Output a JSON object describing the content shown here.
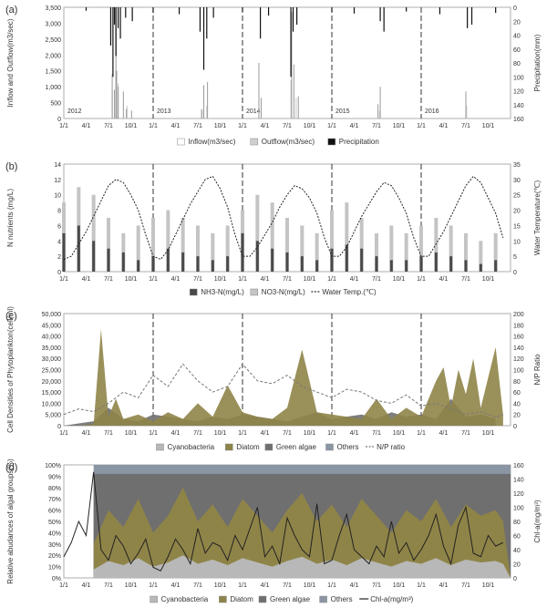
{
  "months": [
    "1/1",
    "4/1",
    "7/1",
    "10/1",
    "1/1",
    "4/1",
    "7/1",
    "10/1",
    "1/1",
    "4/1",
    "7/1",
    "10/1",
    "1/1",
    "4/1",
    "7/1",
    "10/1",
    "1/1",
    "4/1",
    "7/1",
    "10/1"
  ],
  "years": [
    "2012",
    "2013",
    "2014",
    "2015",
    "2016"
  ],
  "colors": {
    "inflow": "#9a9a9a",
    "outflow": "#cfcfcf",
    "precip": "#111111",
    "nh3": "#4a4a4a",
    "no3": "#c4c4c4",
    "cyano": "#b8b8b8",
    "diatom": "#8f8448",
    "green": "#6f6f6f",
    "others": "#8a96a4",
    "line": "#222222"
  },
  "chart_data": [
    {
      "type": "bar",
      "panel_label": "(a)",
      "ylabel": "Inflow and Outflow(m3/sec)",
      "y2label": "Precipitation(mm)",
      "ylim": [
        0,
        3500
      ],
      "y2lim": [
        160,
        0
      ],
      "yticks": [
        "0",
        "500",
        "1,000",
        "1,500",
        "2,000",
        "2,500",
        "3,000",
        "3,500"
      ],
      "y2ticks": [
        "0",
        "20",
        "40",
        "60",
        "80",
        "100",
        "120",
        "140",
        "160"
      ],
      "legend": [
        "Inflow(m3/sec)",
        "Outflow(m3/sec)",
        "Precipitation"
      ],
      "legend_placement": "bottom",
      "year_labels": [
        "2012",
        "2013",
        "2014",
        "2015",
        "2016"
      ],
      "series": [
        {
          "name": "Inflow(m3/sec)",
          "x_month": [
            6.5,
            6.8,
            7.0,
            7.1,
            7.3,
            8.0,
            8.4,
            9.1,
            18.5,
            18.8,
            19.3,
            26.2,
            26.5,
            30.6,
            30.9,
            31.5,
            42.2,
            42.5,
            54.0
          ],
          "values": [
            1400,
            900,
            3450,
            1500,
            1000,
            850,
            300,
            250,
            300,
            1050,
            1150,
            1750,
            650,
            3350,
            1700,
            700,
            450,
            1000,
            850
          ]
        },
        {
          "name": "Outflow(m3/sec)",
          "x_month": [
            6.5,
            7.0,
            7.3,
            8.5,
            18.6,
            19.2,
            30.5,
            31.2,
            42.4,
            54.1
          ],
          "values": [
            900,
            1500,
            1100,
            400,
            250,
            400,
            1200,
            650,
            250,
            400
          ]
        },
        {
          "name": "Precipitation",
          "x_month": [
            6.3,
            6.6,
            6.8,
            7.0,
            7.3,
            7.6,
            8.3,
            9.2,
            18.3,
            18.8,
            19.2,
            20.1,
            26.4,
            30.5,
            30.8,
            31.3,
            42.5,
            43.0,
            54.2,
            54.8,
            3.0,
            12.0,
            15.5,
            24.0,
            27.5,
            36.0,
            39.0,
            46.0,
            50.5,
            58.0
          ],
          "values": [
            55,
            100,
            25,
            70,
            30,
            45,
            15,
            20,
            35,
            90,
            45,
            15,
            45,
            100,
            35,
            25,
            20,
            35,
            30,
            25,
            5,
            8,
            10,
            6,
            12,
            7,
            9,
            6,
            10,
            8
          ]
        }
      ]
    },
    {
      "type": "bar",
      "panel_label": "(b)",
      "ylabel": "N nutrients (mg/L)",
      "y2label": "Water Temperature(℃)",
      "ylim": [
        0,
        14
      ],
      "y2lim": [
        0,
        35
      ],
      "yticks": [
        "0",
        "2",
        "4",
        "6",
        "8",
        "10",
        "12",
        "14"
      ],
      "y2ticks": [
        "0",
        "5",
        "10",
        "15",
        "20",
        "25",
        "30",
        "35"
      ],
      "legend": [
        "NH3-N(mg/L)",
        "NO3-N(mg/L)",
        "Water Temp.(℃)"
      ],
      "legend_placement": "bottom",
      "series": [
        {
          "name": "NH3-N(mg/L)",
          "x_month": [
            0,
            2,
            4,
            6,
            8,
            10,
            12,
            14,
            16,
            18,
            20,
            22,
            24,
            26,
            28,
            30,
            32,
            34,
            36,
            38,
            40,
            42,
            44,
            46,
            48,
            50,
            52,
            54,
            56,
            58
          ],
          "values": [
            5,
            6,
            4,
            3,
            2.5,
            1.5,
            2,
            3,
            2.5,
            2,
            1.5,
            2,
            5,
            4,
            3,
            2.5,
            2,
            1.5,
            3,
            3.5,
            3,
            2,
            1.5,
            1.5,
            2,
            2.5,
            2,
            1.5,
            1,
            1.5
          ]
        },
        {
          "name": "NO3-N(mg/L)",
          "x_month": [
            0,
            2,
            4,
            6,
            8,
            10,
            12,
            14,
            16,
            18,
            20,
            22,
            24,
            26,
            28,
            30,
            32,
            34,
            36,
            38,
            40,
            42,
            44,
            46,
            48,
            50,
            52,
            54,
            56,
            58
          ],
          "values": [
            9,
            11,
            10,
            7,
            5,
            6,
            7,
            8,
            7,
            6,
            5,
            6,
            8,
            10,
            9,
            7,
            6,
            5,
            8,
            9,
            7,
            5,
            6,
            5,
            6,
            7,
            6,
            5,
            4,
            5
          ]
        },
        {
          "name": "Water Temp.(℃)",
          "x_month": [
            0,
            1,
            2,
            3,
            4,
            5,
            6,
            7,
            8,
            9,
            10,
            11,
            12,
            13,
            14,
            15,
            16,
            17,
            18,
            19,
            20,
            21,
            22,
            23,
            24,
            25,
            26,
            27,
            28,
            29,
            30,
            31,
            32,
            33,
            34,
            35,
            36,
            37,
            38,
            39,
            40,
            41,
            42,
            43,
            44,
            45,
            46,
            47,
            48,
            49,
            50,
            51,
            52,
            53,
            54,
            55,
            56,
            57,
            58,
            59
          ],
          "values": [
            4,
            5,
            9,
            13,
            18,
            23,
            28,
            30,
            29,
            25,
            20,
            12,
            5,
            4,
            7,
            12,
            17,
            22,
            26,
            30,
            31,
            27,
            21,
            12,
            5,
            5,
            8,
            12,
            16,
            21,
            25,
            28,
            27,
            24,
            19,
            11,
            5,
            5,
            8,
            13,
            18,
            22,
            26,
            29,
            28,
            24,
            19,
            11,
            5,
            5,
            9,
            13,
            18,
            23,
            28,
            31,
            29,
            24,
            19,
            11
          ]
        }
      ]
    },
    {
      "type": "area",
      "panel_label": "(c)",
      "ylabel": "Cell Densities of Phytoplankton(cell/ml)",
      "y2label": "N/P Ratio",
      "ylim": [
        0,
        50000
      ],
      "y2lim": [
        0,
        200
      ],
      "yticks": [
        "0",
        "5,000",
        "10,000",
        "15,000",
        "20,000",
        "25,000",
        "30,000",
        "35,000",
        "40,000",
        "45,000",
        "50,000"
      ],
      "y2ticks": [
        "0",
        "20",
        "40",
        "60",
        "80",
        "100",
        "120",
        "140",
        "160",
        "180",
        "200"
      ],
      "legend": [
        "Cyanobacteria",
        "Diatom",
        "Green algae",
        "Others",
        "N/P ratio"
      ],
      "legend_placement": "bottom",
      "series": [
        {
          "name": "Diatom",
          "x_month": [
            0,
            2,
            4,
            5,
            6,
            7,
            8,
            10,
            12,
            14,
            16,
            18,
            20,
            22,
            24,
            26,
            28,
            30,
            32,
            34,
            36,
            38,
            40,
            42,
            44,
            46,
            48,
            50,
            51,
            52,
            53,
            54,
            55,
            56,
            58,
            59
          ],
          "values": [
            0,
            0,
            500,
            43000,
            4000,
            12000,
            3000,
            5000,
            2000,
            6000,
            3000,
            10000,
            4000,
            18000,
            6000,
            4000,
            3000,
            8000,
            34000,
            6000,
            5000,
            4000,
            3000,
            12000,
            3000,
            8000,
            4000,
            20000,
            26000,
            8000,
            25000,
            14000,
            30000,
            8000,
            35000,
            5000
          ]
        },
        {
          "name": "Green algae",
          "x_month": [
            0,
            2,
            4,
            6,
            8,
            10,
            12,
            14,
            16,
            18,
            20,
            22,
            24,
            26,
            28,
            30,
            32,
            34,
            36,
            38,
            40,
            42,
            44,
            46,
            48,
            50,
            52,
            54,
            56,
            58
          ],
          "values": [
            0,
            1000,
            2000,
            8000,
            3000,
            2000,
            5000,
            4000,
            3000,
            2000,
            4000,
            3000,
            5000,
            4000,
            3000,
            2000,
            4000,
            6000,
            3000,
            4000,
            5000,
            3000,
            6000,
            4000,
            5000,
            3000,
            12000,
            4000,
            5000,
            3000
          ]
        },
        {
          "name": "N/P ratio",
          "x_month": [
            0,
            2,
            4,
            6,
            8,
            10,
            12,
            14,
            16,
            18,
            20,
            22,
            24,
            26,
            28,
            30,
            32,
            34,
            36,
            38,
            40,
            42,
            44,
            46,
            48,
            50,
            52,
            54,
            56,
            58,
            59
          ],
          "values": [
            20,
            30,
            25,
            40,
            60,
            50,
            90,
            70,
            110,
            80,
            60,
            70,
            110,
            80,
            75,
            90,
            70,
            60,
            50,
            65,
            60,
            45,
            40,
            55,
            35,
            40,
            30,
            20,
            25,
            15,
            20
          ]
        }
      ]
    },
    {
      "type": "area",
      "panel_label": "(d)",
      "ylabel": "Relative abudances of algal groups(%)",
      "y2label": "Chl-a(mg/m³)",
      "ylim": [
        0,
        100
      ],
      "y2lim": [
        0,
        160
      ],
      "yticks": [
        "0%",
        "10%",
        "20%",
        "30%",
        "40%",
        "50%",
        "60%",
        "70%",
        "80%",
        "90%",
        "100%"
      ],
      "y2ticks": [
        "0",
        "20",
        "40",
        "60",
        "80",
        "100",
        "120",
        "140",
        "160"
      ],
      "legend": [
        "Cyanobacteria",
        "Diatom",
        "Green algae",
        "Others",
        "Chl-a(mg/m³)"
      ],
      "legend_placement": "bottom",
      "series": [
        {
          "name": "Diatom",
          "x_month": [
            4,
            6,
            8,
            10,
            12,
            14,
            16,
            18,
            20,
            22,
            24,
            26,
            28,
            30,
            32,
            34,
            36,
            38,
            40,
            42,
            44,
            46,
            48,
            50,
            52,
            54,
            56,
            58,
            59
          ],
          "values": [
            30,
            60,
            45,
            70,
            40,
            55,
            80,
            50,
            65,
            45,
            70,
            55,
            40,
            60,
            75,
            50,
            65,
            45,
            70,
            55,
            40,
            60,
            50,
            70,
            45,
            65,
            55,
            60,
            50
          ]
        },
        {
          "name": "Chl-a(mg/m³)",
          "x_month": [
            0,
            1,
            2,
            3,
            4,
            5,
            6,
            7,
            8,
            9,
            10,
            11,
            12,
            13,
            14,
            15,
            16,
            17,
            18,
            19,
            20,
            21,
            22,
            23,
            24,
            25,
            26,
            27,
            28,
            29,
            30,
            31,
            32,
            33,
            34,
            35,
            36,
            37,
            38,
            39,
            40,
            41,
            42,
            43,
            44,
            45,
            46,
            47,
            48,
            49,
            50,
            51,
            52,
            53,
            54,
            55,
            56,
            57,
            58,
            59
          ],
          "values": [
            30,
            50,
            80,
            60,
            150,
            40,
            25,
            60,
            45,
            20,
            35,
            55,
            15,
            10,
            30,
            55,
            40,
            20,
            70,
            35,
            50,
            45,
            25,
            60,
            40,
            70,
            100,
            30,
            45,
            20,
            85,
            60,
            40,
            30,
            105,
            20,
            25,
            60,
            90,
            40,
            30,
            20,
            45,
            30,
            80,
            35,
            50,
            25,
            40,
            60,
            90,
            45,
            20,
            75,
            100,
            35,
            30,
            60,
            45,
            50
          ]
        }
      ]
    }
  ]
}
